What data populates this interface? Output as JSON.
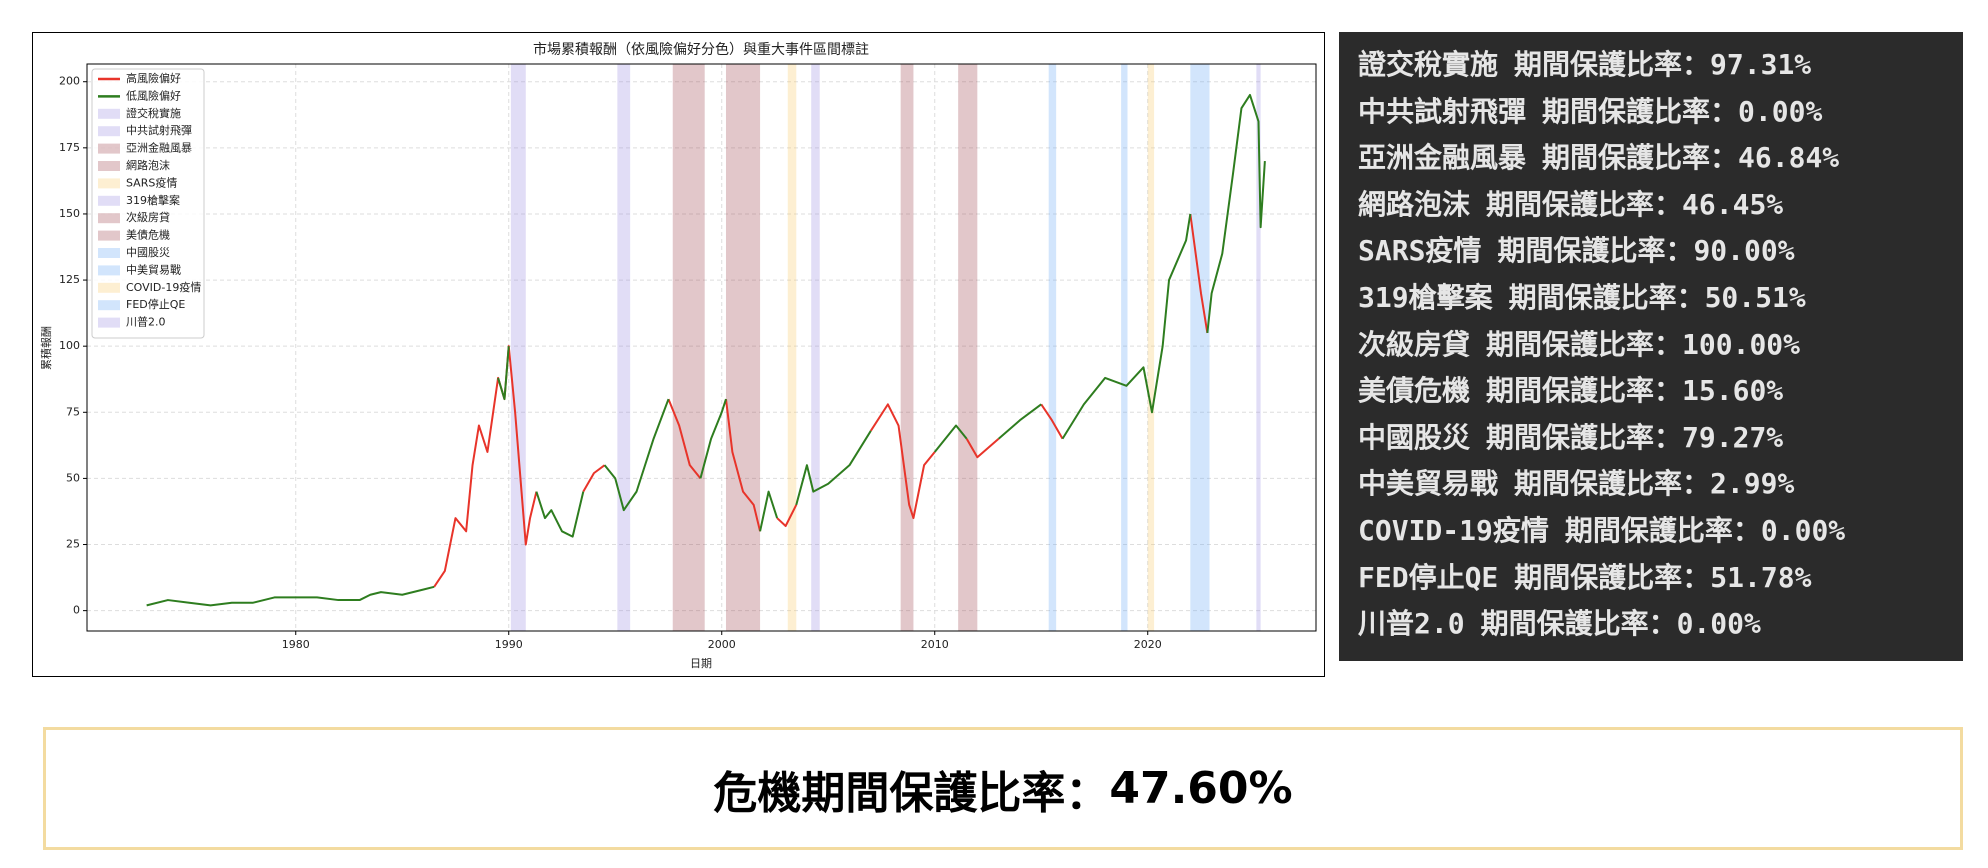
{
  "chart_data": {
    "type": "line",
    "title": "市場累積報酬（依風險偏好分色）與重大事件區間標註",
    "x_label": "日期",
    "y_label": "累積報酬",
    "xlim": [
      1970.2,
      2027.9
    ],
    "ylim": [
      -7.7,
      206.7
    ],
    "xticks": [
      1980,
      1990,
      2000,
      2010,
      2020
    ],
    "yticks": [
      0,
      25,
      50,
      75,
      100,
      125,
      150,
      175,
      200
    ],
    "grid": true,
    "legend": "upper left",
    "x": [
      1973,
      1974,
      1975,
      1976,
      1977,
      1978,
      1979,
      1980,
      1981,
      1982,
      1983,
      1983.5,
      1984,
      1985,
      1986,
      1986.5,
      1987,
      1987.5,
      1988,
      1988.3,
      1988.6,
      1989,
      1989.5,
      1989.8,
      1990,
      1990.3,
      1990.6,
      1990.8,
      1991,
      1991.3,
      1991.7,
      1992,
      1992.5,
      1993,
      1993.5,
      1994,
      1994.5,
      1995,
      1995.4,
      1996,
      1996.8,
      1997.5,
      1998,
      1998.5,
      1999,
      1999.5,
      2000,
      2000.2,
      2000.5,
      2001,
      2001.5,
      2001.8,
      2002.2,
      2002.6,
      2003,
      2003.5,
      2004,
      2004.3,
      2005,
      2006,
      2007,
      2007.8,
      2008.3,
      2008.8,
      2009,
      2009.5,
      2010,
      2011,
      2011.5,
      2012,
      2013,
      2014,
      2015,
      2015.5,
      2016,
      2017,
      2018,
      2019,
      2019.8,
      2020.2,
      2020.7,
      2021,
      2021.8,
      2022,
      2022.5,
      2022.8,
      2023,
      2023.5,
      2024,
      2024.4,
      2024.8,
      2025.2,
      2025.3,
      2025.5
    ],
    "series": [
      {
        "name": "高風險偏好",
        "color": "#e8342a",
        "values": [
          null,
          null,
          null,
          null,
          null,
          null,
          null,
          null,
          null,
          null,
          null,
          null,
          null,
          null,
          null,
          9,
          15,
          35,
          30,
          55,
          70,
          60,
          88,
          80,
          100,
          75,
          45,
          25,
          35,
          45,
          null,
          null,
          null,
          null,
          45,
          52,
          55,
          null,
          null,
          null,
          null,
          80,
          70,
          55,
          50,
          null,
          null,
          80,
          60,
          45,
          40,
          30,
          null,
          35,
          32,
          40,
          null,
          null,
          null,
          null,
          68,
          78,
          70,
          40,
          35,
          55,
          60,
          null,
          65,
          58,
          65,
          null,
          78,
          72,
          65,
          null,
          null,
          null,
          null,
          null,
          null,
          null,
          null,
          150,
          120,
          105,
          null,
          null,
          null,
          null,
          null,
          null,
          null,
          null
        ]
      },
      {
        "name": "低風險偏好",
        "color": "#2e7d1f",
        "values": [
          2,
          4,
          3,
          2,
          3,
          3,
          5,
          5,
          5,
          4,
          4,
          6,
          7,
          6,
          8,
          9,
          null,
          null,
          null,
          null,
          null,
          null,
          88,
          80,
          100,
          null,
          null,
          null,
          null,
          45,
          35,
          38,
          30,
          28,
          45,
          null,
          55,
          50,
          38,
          45,
          65,
          80,
          null,
          null,
          50,
          65,
          75,
          80,
          null,
          null,
          null,
          30,
          45,
          35,
          null,
          40,
          55,
          45,
          48,
          55,
          68,
          null,
          null,
          null,
          null,
          null,
          60,
          70,
          65,
          null,
          65,
          72,
          78,
          null,
          65,
          78,
          88,
          85,
          92,
          75,
          100,
          125,
          140,
          150,
          null,
          105,
          120,
          135,
          165,
          190,
          195,
          185,
          145,
          170
        ]
      }
    ],
    "events": [
      {
        "name": "證交稅實施",
        "start": 1990.1,
        "end": 1990.8,
        "color": "#9a90e0"
      },
      {
        "name": "中共試射飛彈",
        "start": 1995.1,
        "end": 1995.7,
        "color": "#9a90e0"
      },
      {
        "name": "亞洲金融風暴",
        "start": 1997.7,
        "end": 1999.2,
        "color": "#a0474f"
      },
      {
        "name": "網路泡沫",
        "start": 2000.2,
        "end": 2001.8,
        "color": "#a0474f"
      },
      {
        "name": "SARS疫情",
        "start": 2003.1,
        "end": 2003.5,
        "color": "#f7c96a"
      },
      {
        "name": "319槍擊案",
        "start": 2004.2,
        "end": 2004.6,
        "color": "#9a90e0"
      },
      {
        "name": "次級房貸",
        "start": 2008.4,
        "end": 2009.0,
        "color": "#a0474f"
      },
      {
        "name": "美債危機",
        "start": 2011.1,
        "end": 2012.0,
        "color": "#a0474f"
      },
      {
        "name": "中國股災",
        "start": 2015.35,
        "end": 2015.7,
        "color": "#6aaaf5"
      },
      {
        "name": "中美貿易戰",
        "start": 2018.75,
        "end": 2019.05,
        "color": "#6aaaf5"
      },
      {
        "name": "COVID-19疫情",
        "start": 2020.0,
        "end": 2020.3,
        "color": "#f7c96a"
      },
      {
        "name": "FED停止QE",
        "start": 2022.0,
        "end": 2022.9,
        "color": "#6aaaf5"
      },
      {
        "name": "川普2.0",
        "start": 2025.1,
        "end": 2025.3,
        "color": "#9a90e0"
      }
    ]
  },
  "panel": [
    {
      "name": "證交稅實施",
      "text": "期間保護比率：97.31%"
    },
    {
      "name": "中共試射飛彈",
      "text": "期間保護比率：0.00%"
    },
    {
      "name": "亞洲金融風暴",
      "text": "期間保護比率：46.84%"
    },
    {
      "name": "網路泡沫",
      "text": "期間保護比率：46.45%"
    },
    {
      "name": "SARS疫情",
      "text": "期間保護比率：90.00%"
    },
    {
      "name": "319槍擊案",
      "text": "期間保護比率：50.51%"
    },
    {
      "name": "次級房貸",
      "text": "期間保護比率：100.00%"
    },
    {
      "name": "美債危機",
      "text": "期間保護比率：15.60%"
    },
    {
      "name": "中國股災",
      "text": "期間保護比率：79.27%"
    },
    {
      "name": "中美貿易戰",
      "text": "期間保護比率：2.99%"
    },
    {
      "name": "COVID-19疫情",
      "text": "期間保護比率：0.00%"
    },
    {
      "name": "FED停止QE",
      "text": "期間保護比率：51.78%"
    },
    {
      "name": "川普2.0",
      "text": "期間保護比率：0.00%"
    }
  ],
  "summary": {
    "label": "危機期間保護比率：",
    "value": "47.60%"
  }
}
